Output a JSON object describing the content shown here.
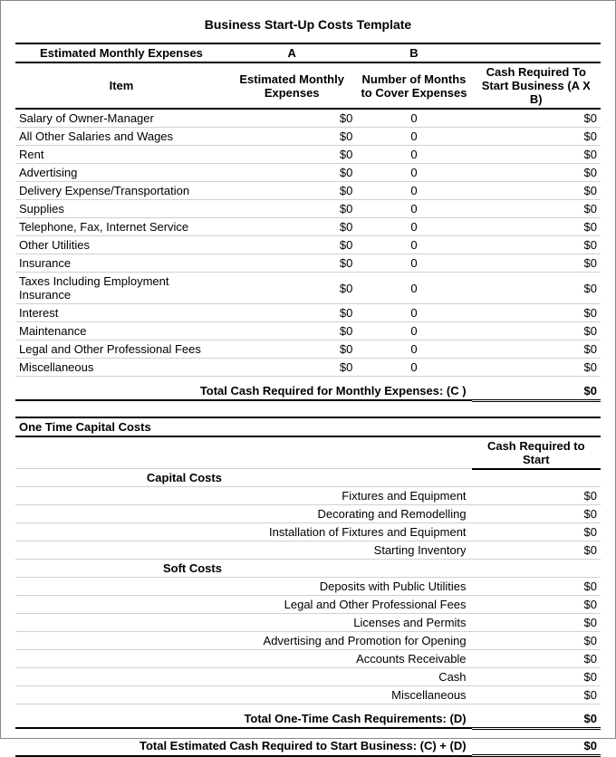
{
  "title": "Business Start-Up Costs Template",
  "monthly": {
    "section_header": "Estimated Monthly Expenses",
    "col_a": "A",
    "col_b": "B",
    "header_item": "Item",
    "header_est": "Estimated Monthly Expenses",
    "header_months": "Number of Months  to Cover Expenses",
    "header_cash": "Cash Required To Start Business (A X B)",
    "rows": [
      {
        "item": "Salary of Owner-Manager",
        "est": "$0",
        "months": "0",
        "cash": "$0"
      },
      {
        "item": "All Other Salaries and Wages",
        "est": "$0",
        "months": "0",
        "cash": "$0"
      },
      {
        "item": "Rent",
        "est": "$0",
        "months": "0",
        "cash": "$0"
      },
      {
        "item": "Advertising",
        "est": "$0",
        "months": "0",
        "cash": "$0"
      },
      {
        "item": "Delivery Expense/Transportation",
        "est": "$0",
        "months": "0",
        "cash": "$0"
      },
      {
        "item": "Supplies",
        "est": "$0",
        "months": "0",
        "cash": "$0"
      },
      {
        "item": "Telephone, Fax, Internet Service",
        "est": "$0",
        "months": "0",
        "cash": "$0"
      },
      {
        "item": "Other Utilities",
        "est": "$0",
        "months": "0",
        "cash": "$0"
      },
      {
        "item": "Insurance",
        "est": "$0",
        "months": "0",
        "cash": "$0"
      },
      {
        "item": "Taxes Including Employment Insurance",
        "est": "$0",
        "months": "0",
        "cash": "$0"
      },
      {
        "item": "Interest",
        "est": "$0",
        "months": "0",
        "cash": "$0"
      },
      {
        "item": "Maintenance",
        "est": "$0",
        "months": "0",
        "cash": "$0"
      },
      {
        "item": "Legal and Other Professional Fees",
        "est": "$0",
        "months": "0",
        "cash": "$0"
      },
      {
        "item": "Miscellaneous",
        "est": "$0",
        "months": "0",
        "cash": "$0"
      }
    ],
    "total_label": "Total Cash Required for Monthly Expenses: (C )",
    "total_value": "$0"
  },
  "onetime": {
    "section_header": "One Time Capital Costs",
    "col_cash": "Cash Required to Start",
    "capital_header": "Capital Costs",
    "capital_rows": [
      {
        "item": "Fixtures and Equipment",
        "cash": "$0"
      },
      {
        "item": "Decorating and Remodelling",
        "cash": "$0"
      },
      {
        "item": "Installation of Fixtures and Equipment",
        "cash": "$0"
      },
      {
        "item": "Starting Inventory",
        "cash": "$0"
      }
    ],
    "soft_header": "Soft Costs",
    "soft_rows": [
      {
        "item": "Deposits with Public Utilities",
        "cash": "$0"
      },
      {
        "item": "Legal and Other Professional Fees",
        "cash": "$0"
      },
      {
        "item": "Licenses and Permits",
        "cash": "$0"
      },
      {
        "item": "Advertising and Promotion for Opening",
        "cash": "$0"
      },
      {
        "item": "Accounts Receivable",
        "cash": "$0"
      },
      {
        "item": "Cash",
        "cash": "$0"
      },
      {
        "item": "Miscellaneous",
        "cash": "$0"
      }
    ],
    "total_label": "Total One-Time Cash Requirements: (D)",
    "total_value": "$0"
  },
  "grand": {
    "label": "Total Estimated Cash Required to Start Business: (C) + (D)",
    "value": "$0"
  }
}
